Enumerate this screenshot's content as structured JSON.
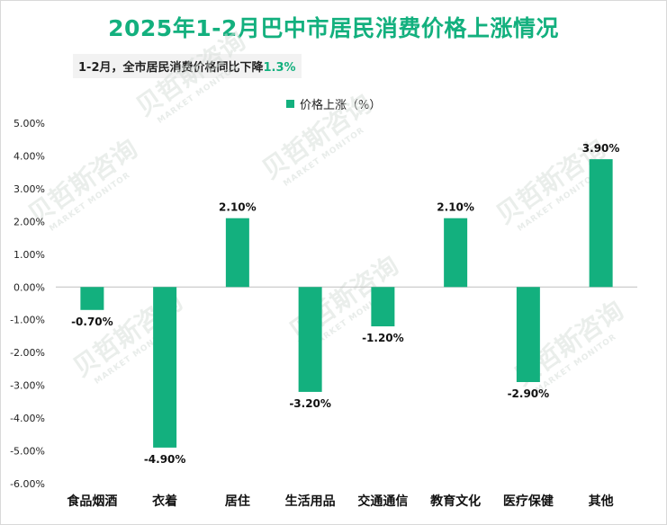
{
  "header": {
    "title": "2025年1-2月巴中市居民消费价格上涨情况",
    "subtitle_prefix": "1-2月，全市居民消费价格同比下降",
    "subtitle_value": "1.3%"
  },
  "legend": {
    "label": "价格上涨（%）"
  },
  "watermark": {
    "text": "贝哲斯咨询",
    "subtext": "MARKET MONITOR"
  },
  "colors": {
    "bar": "#13b07e",
    "title": "#13b07e",
    "axis": "#bfbfbf"
  },
  "chart_data": {
    "type": "bar",
    "title": "2025年1-2月巴中市居民消费价格上涨情况",
    "categories": [
      "食品烟酒",
      "衣着",
      "居住",
      "生活用品",
      "交通通信",
      "教育文化",
      "医疗保健",
      "其他"
    ],
    "series": [
      {
        "name": "价格上涨（%）",
        "values": [
          -0.7,
          -4.9,
          2.1,
          -3.2,
          -1.2,
          2.1,
          -2.9,
          3.9
        ]
      }
    ],
    "data_labels": [
      "-0.70%",
      "-4.90%",
      "2.10%",
      "-3.20%",
      "-1.20%",
      "2.10%",
      "-2.90%",
      "3.90%"
    ],
    "ylim": [
      -6,
      5
    ],
    "yticks": [
      "5.00%",
      "4.00%",
      "3.00%",
      "2.00%",
      "1.00%",
      "0.00%",
      "-1.00%",
      "-2.00%",
      "-3.00%",
      "-4.00%",
      "-5.00%",
      "-6.00%"
    ],
    "ytick_values": [
      5,
      4,
      3,
      2,
      1,
      0,
      -1,
      -2,
      -3,
      -4,
      -5,
      -6
    ],
    "legend_position": "top-center",
    "grid": false
  }
}
